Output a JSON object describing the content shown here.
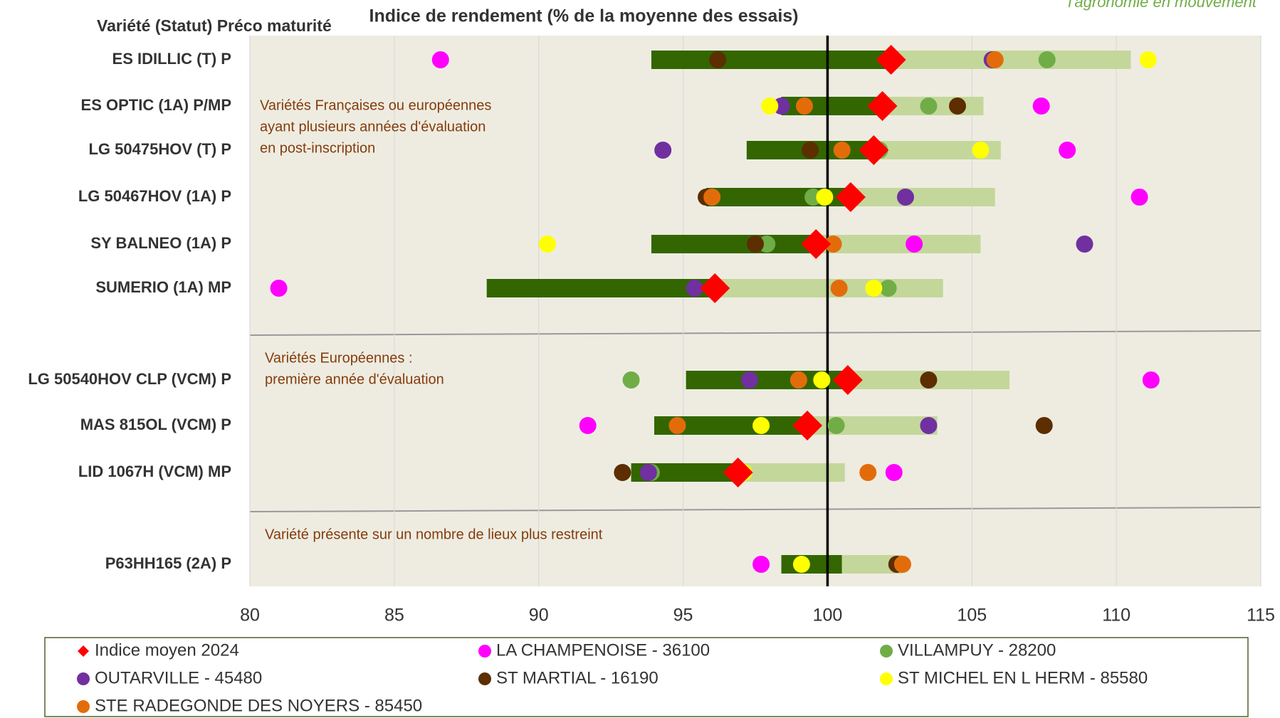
{
  "chart_data": {
    "type": "dot-range",
    "title": "Indice de rendement (% de la moyenne des essais)",
    "y_header": "Variété (Statut) Préco maturité",
    "logo": "l'agronomie en mouvement",
    "categories": [
      "ES IDILLIC (T) P",
      "ES OPTIC (1A) P/MP",
      "LG 50475HOV (T) P",
      "LG 50467HOV (1A) P",
      "SY BALNEO (1A) P",
      "SUMERIO (1A) MP",
      "LG 50540HOV CLP (VCM) P",
      "MAS 815OL  (VCM) P",
      "LID 1067H (VCM) MP",
      "P63HH165 (2A) P"
    ],
    "ranges": [
      [
        93.9,
        102.2,
        110.5
      ],
      [
        98.4,
        101.9,
        105.4
      ],
      [
        97.2,
        101.6,
        106.0
      ],
      [
        95.8,
        100.8,
        105.8
      ],
      [
        93.9,
        99.6,
        105.3
      ],
      [
        88.2,
        96.1,
        104.0
      ],
      [
        95.1,
        100.7,
        106.3
      ],
      [
        94.0,
        99.3,
        103.8
      ],
      [
        93.2,
        96.9,
        100.6
      ],
      [
        98.4,
        100.5,
        102.6
      ]
    ],
    "range_colors": [
      "#336600",
      "#c4d79b"
    ],
    "series": [
      {
        "name": "Indice moyen 2024",
        "color": "#ff0000",
        "marker": "diamond",
        "values": [
          102.2,
          101.9,
          101.6,
          100.8,
          99.6,
          96.1,
          100.7,
          99.3,
          96.9,
          null
        ]
      },
      {
        "name": "LA CHAMPENOISE - 36100",
        "color": "#ff00ff",
        "marker": "circle",
        "values": [
          86.6,
          107.4,
          108.3,
          110.8,
          103.0,
          81.0,
          111.2,
          91.7,
          102.3,
          97.7
        ]
      },
      {
        "name": "VILLAMPUY - 28200",
        "color": "#70ad47",
        "marker": "circle",
        "values": [
          107.6,
          103.5,
          101.8,
          99.5,
          97.9,
          102.1,
          93.2,
          100.3,
          93.9,
          null
        ]
      },
      {
        "name": "OUTARVILLE - 45480",
        "color": "#7030a0",
        "marker": "circle",
        "values": [
          105.7,
          98.4,
          94.3,
          102.7,
          108.9,
          95.4,
          97.3,
          103.5,
          93.8,
          null
        ]
      },
      {
        "name": "ST MARTIAL - 16190",
        "color": "#5c2e00",
        "marker": "circle",
        "values": [
          96.2,
          104.5,
          99.4,
          95.8,
          97.5,
          null,
          103.5,
          107.5,
          92.9,
          102.4
        ]
      },
      {
        "name": "ST MICHEL EN L HERM - 85580",
        "color": "#ffff00",
        "marker": "circle",
        "values": [
          111.1,
          98.0,
          105.3,
          99.9,
          90.3,
          101.6,
          99.8,
          97.7,
          97.1,
          99.1
        ]
      },
      {
        "name": "STE RADEGONDE DES NOYERS - 85450",
        "color": "#e36c0a",
        "marker": "circle",
        "values": [
          105.8,
          99.2,
          100.5,
          96.0,
          100.2,
          100.4,
          99.0,
          94.8,
          101.4,
          102.6
        ]
      }
    ],
    "reference_line": 100,
    "annotations": [
      {
        "row": 1,
        "lines": [
          "Variétés Françaises ou européennes",
          "ayant plusieurs années d'évaluation",
          "en post-inscription"
        ]
      },
      {
        "row": 6,
        "lines": [
          "Variétés Européennes :",
          "première année d'évaluation"
        ]
      },
      {
        "row": 9,
        "lines": [
          "Variété présente sur un nombre de lieux plus restreint"
        ]
      }
    ],
    "xlim": [
      80,
      115
    ],
    "xticks": [
      80,
      85,
      90,
      95,
      100,
      105,
      110,
      115
    ],
    "grid": true
  }
}
